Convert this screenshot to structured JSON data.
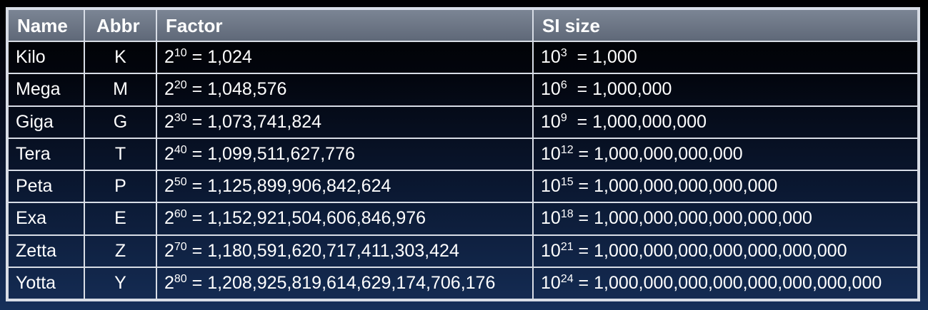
{
  "headers": {
    "name": "Name",
    "abbr": "Abbr",
    "factor": "Factor",
    "si_size": "SI size"
  },
  "rows": [
    {
      "name": "Kilo",
      "abbr": "K",
      "factor_base": "2",
      "factor_exp": "10",
      "factor_value": " = 1,024",
      "si_base": "10",
      "si_exp": "3",
      "si_value": "  = 1,000"
    },
    {
      "name": "Mega",
      "abbr": "M",
      "factor_base": "2",
      "factor_exp": "20",
      "factor_value": " = 1,048,576",
      "si_base": "10",
      "si_exp": "6",
      "si_value": "  = 1,000,000"
    },
    {
      "name": "Giga",
      "abbr": "G",
      "factor_base": "2",
      "factor_exp": "30",
      "factor_value": " = 1,073,741,824",
      "si_base": "10",
      "si_exp": "9",
      "si_value": "  = 1,000,000,000"
    },
    {
      "name": "Tera",
      "abbr": "T",
      "factor_base": "2",
      "factor_exp": "40",
      "factor_value": " = 1,099,511,627,776",
      "si_base": "10",
      "si_exp": "12",
      "si_value": " = 1,000,000,000,000"
    },
    {
      "name": "Peta",
      "abbr": "P",
      "factor_base": "2",
      "factor_exp": "50",
      "factor_value": " = 1,125,899,906,842,624",
      "si_base": "10",
      "si_exp": "15",
      "si_value": " = 1,000,000,000,000,000"
    },
    {
      "name": "Exa",
      "abbr": "E",
      "factor_base": "2",
      "factor_exp": "60",
      "factor_value": " = 1,152,921,504,606,846,976",
      "si_base": "10",
      "si_exp": "18",
      "si_value": " = 1,000,000,000,000,000,000"
    },
    {
      "name": "Zetta",
      "abbr": "Z",
      "factor_base": "2",
      "factor_exp": "70",
      "factor_value": " = 1,180,591,620,717,411,303,424",
      "si_base": "10",
      "si_exp": "21",
      "si_value": " = 1,000,000,000,000,000,000,000"
    },
    {
      "name": "Yotta",
      "abbr": "Y",
      "factor_base": "2",
      "factor_exp": "80",
      "factor_value": " = 1,208,925,819,614,629,174,706,176",
      "si_base": "10",
      "si_exp": "24",
      "si_value": " = 1,000,000,000,000,000,000,000,000"
    }
  ]
}
